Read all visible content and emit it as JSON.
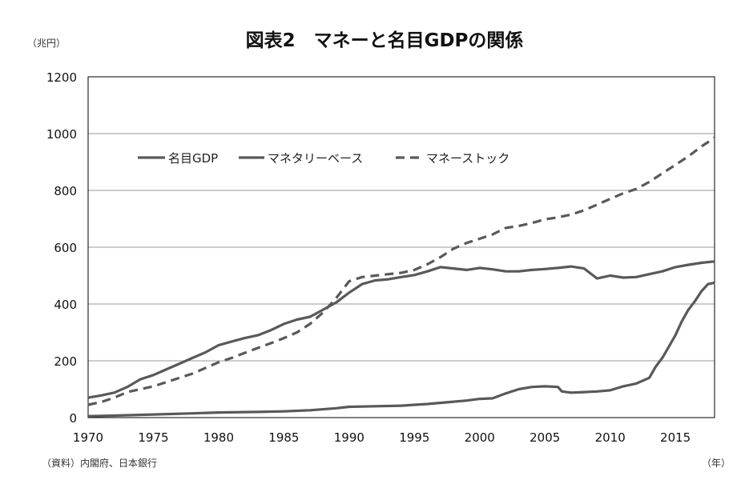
{
  "chart_data": {
    "type": "line",
    "title": "図表2　マネーと名目GDPの関係",
    "y_unit": "（兆円）",
    "x_unit": "（年）",
    "source": "（資料）内閣府、日本銀行",
    "xlim": [
      1970,
      2018
    ],
    "ylim": [
      0,
      1200
    ],
    "x_ticks": [
      "1970",
      "1975",
      "1980",
      "1985",
      "1990",
      "1995",
      "2000",
      "2005",
      "2010",
      "2015"
    ],
    "y_ticks": [
      "0",
      "200",
      "400",
      "600",
      "800",
      "1000",
      "1200"
    ],
    "grid": true,
    "legend_position": "top-left",
    "series": [
      {
        "name": "名目GDP",
        "style": "solid",
        "color": "#595959",
        "points": [
          [
            1970,
            70
          ],
          [
            1971,
            78
          ],
          [
            1972,
            88
          ],
          [
            1973,
            108
          ],
          [
            1974,
            135
          ],
          [
            1975,
            150
          ],
          [
            1976,
            170
          ],
          [
            1977,
            190
          ],
          [
            1978,
            210
          ],
          [
            1979,
            230
          ],
          [
            1980,
            255
          ],
          [
            1981,
            268
          ],
          [
            1982,
            280
          ],
          [
            1983,
            290
          ],
          [
            1984,
            308
          ],
          [
            1985,
            330
          ],
          [
            1986,
            345
          ],
          [
            1987,
            355
          ],
          [
            1988,
            380
          ],
          [
            1989,
            405
          ],
          [
            1990,
            440
          ],
          [
            1991,
            470
          ],
          [
            1992,
            483
          ],
          [
            1993,
            487
          ],
          [
            1994,
            495
          ],
          [
            1995,
            502
          ],
          [
            1996,
            515
          ],
          [
            1997,
            530
          ],
          [
            1998,
            525
          ],
          [
            1999,
            520
          ],
          [
            2000,
            527
          ],
          [
            2001,
            522
          ],
          [
            2002,
            515
          ],
          [
            2003,
            515
          ],
          [
            2004,
            520
          ],
          [
            2005,
            523
          ],
          [
            2006,
            527
          ],
          [
            2007,
            532
          ],
          [
            2008,
            525
          ],
          [
            2009,
            490
          ],
          [
            2010,
            500
          ],
          [
            2011,
            493
          ],
          [
            2012,
            495
          ],
          [
            2013,
            505
          ],
          [
            2014,
            515
          ],
          [
            2015,
            530
          ],
          [
            2016,
            538
          ],
          [
            2017,
            545
          ],
          [
            2018,
            550
          ]
        ]
      },
      {
        "name": "マネタリーベース",
        "style": "solid",
        "color": "#595959",
        "points": [
          [
            1970,
            5
          ],
          [
            1972,
            7
          ],
          [
            1975,
            11
          ],
          [
            1978,
            15
          ],
          [
            1980,
            18
          ],
          [
            1983,
            20
          ],
          [
            1985,
            22
          ],
          [
            1987,
            26
          ],
          [
            1989,
            33
          ],
          [
            1990,
            38
          ],
          [
            1992,
            40
          ],
          [
            1994,
            42
          ],
          [
            1996,
            48
          ],
          [
            1998,
            56
          ],
          [
            1999,
            60
          ],
          [
            2000,
            66
          ],
          [
            2001,
            68
          ],
          [
            2002,
            85
          ],
          [
            2003,
            100
          ],
          [
            2004,
            108
          ],
          [
            2005,
            110
          ],
          [
            2006,
            108
          ],
          [
            2006.3,
            92
          ],
          [
            2007,
            88
          ],
          [
            2008,
            90
          ],
          [
            2009,
            92
          ],
          [
            2010,
            96
          ],
          [
            2011,
            110
          ],
          [
            2012,
            120
          ],
          [
            2013,
            140
          ],
          [
            2013.5,
            180
          ],
          [
            2014,
            210
          ],
          [
            2014.5,
            250
          ],
          [
            2015,
            290
          ],
          [
            2015.5,
            340
          ],
          [
            2016,
            380
          ],
          [
            2016.5,
            410
          ],
          [
            2017,
            445
          ],
          [
            2017.5,
            470
          ],
          [
            2018,
            475
          ]
        ]
      },
      {
        "name": "マネーストック",
        "style": "dashed",
        "color": "#595959",
        "points": [
          [
            1970,
            45
          ],
          [
            1971,
            55
          ],
          [
            1972,
            70
          ],
          [
            1973,
            90
          ],
          [
            1974,
            100
          ],
          [
            1975,
            110
          ],
          [
            1976,
            125
          ],
          [
            1977,
            140
          ],
          [
            1978,
            155
          ],
          [
            1979,
            175
          ],
          [
            1980,
            195
          ],
          [
            1981,
            210
          ],
          [
            1982,
            228
          ],
          [
            1983,
            245
          ],
          [
            1984,
            262
          ],
          [
            1985,
            280
          ],
          [
            1986,
            300
          ],
          [
            1987,
            330
          ],
          [
            1988,
            370
          ],
          [
            1989,
            420
          ],
          [
            1990,
            480
          ],
          [
            1991,
            495
          ],
          [
            1992,
            500
          ],
          [
            1993,
            505
          ],
          [
            1994,
            510
          ],
          [
            1995,
            520
          ],
          [
            1996,
            540
          ],
          [
            1997,
            565
          ],
          [
            1998,
            595
          ],
          [
            1999,
            615
          ],
          [
            2000,
            630
          ],
          [
            2001,
            645
          ],
          [
            2002,
            668
          ],
          [
            2003,
            675
          ],
          [
            2004,
            685
          ],
          [
            2005,
            698
          ],
          [
            2006,
            705
          ],
          [
            2007,
            715
          ],
          [
            2008,
            730
          ],
          [
            2009,
            750
          ],
          [
            2010,
            770
          ],
          [
            2011,
            790
          ],
          [
            2012,
            805
          ],
          [
            2013,
            830
          ],
          [
            2014,
            860
          ],
          [
            2015,
            890
          ],
          [
            2016,
            920
          ],
          [
            2017,
            955
          ],
          [
            2018,
            985
          ]
        ]
      }
    ]
  }
}
